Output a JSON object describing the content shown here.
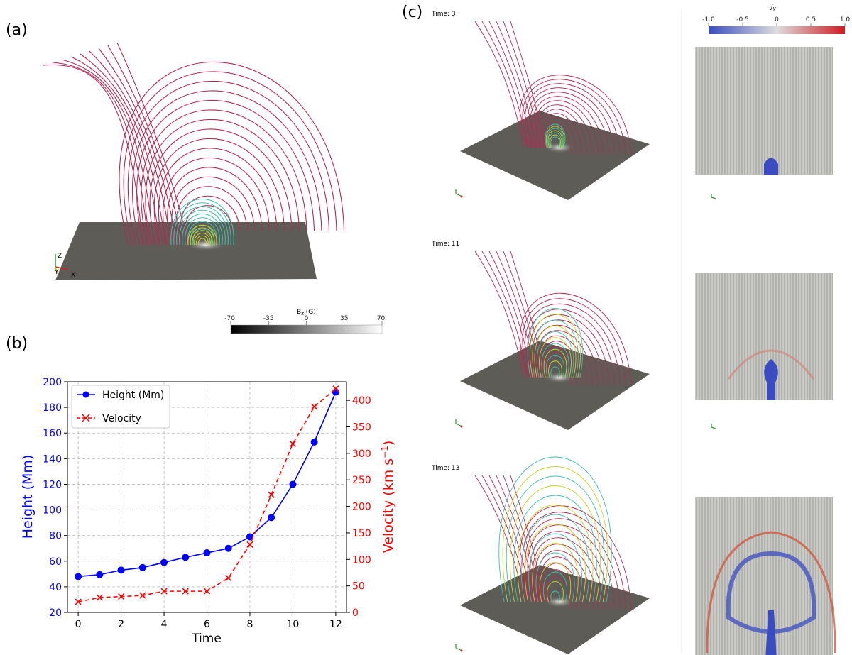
{
  "panels": {
    "a": "(a)",
    "b": "(b)",
    "c": "(c)"
  },
  "panel_a": {
    "axes": {
      "z": "Z",
      "y": "Y",
      "x": "X"
    },
    "colorbar": {
      "title": "B",
      "title_sub": "z",
      "title_unit": " (G)",
      "ticks": [
        "-70.",
        "-35",
        "0",
        "35",
        "70."
      ],
      "range": [
        -70,
        70
      ],
      "colors": [
        "#000000",
        "#ffffff"
      ]
    }
  },
  "panel_c": {
    "times": [
      "Time: 3",
      "Time: 11",
      "Time: 13"
    ],
    "colorbar": {
      "title": "J",
      "title_sub": "y",
      "ticks": [
        "-1.0",
        "-0.5",
        "0",
        "0.5",
        "1.0"
      ],
      "range": [
        -1.0,
        1.0
      ],
      "colors": [
        "#3a4cc0",
        "#dddddd",
        "#cf1a22"
      ]
    }
  },
  "chart_data": {
    "type": "line",
    "xlabel": "Time",
    "ylabel": "Height (Mm)",
    "ylabel_right_main": "Velocity (km s",
    "ylabel_right_sup": "−1",
    "ylabel_right_end": ")",
    "xlim": [
      -0.5,
      12.5
    ],
    "ylim": [
      20,
      200
    ],
    "y2lim": [
      0,
      435
    ],
    "xticks": [
      "0",
      "2",
      "4",
      "6",
      "8",
      "10",
      "12"
    ],
    "yticks": [
      "20",
      "40",
      "60",
      "80",
      "100",
      "120",
      "140",
      "160",
      "180",
      "200"
    ],
    "y2ticks": [
      "0",
      "50",
      "100",
      "150",
      "200",
      "250",
      "300",
      "350",
      "400"
    ],
    "grid": true,
    "legend_position": "upper-left",
    "x": [
      0,
      1,
      2,
      3,
      4,
      5,
      6,
      7,
      8,
      9,
      10,
      11,
      12
    ],
    "series": [
      {
        "name": "Height (Mm)",
        "axis": "left",
        "color": "#0000ff",
        "marker": "circle",
        "style": "solid",
        "values": [
          48,
          49.5,
          53,
          55,
          59,
          63,
          66.5,
          70,
          79,
          94,
          120,
          153,
          192
        ]
      },
      {
        "name": "Velocity",
        "axis": "right",
        "color": "#ff0000",
        "marker": "x",
        "style": "dashed",
        "values": [
          20,
          28,
          30,
          32,
          40,
          40,
          40,
          65,
          128,
          222,
          318,
          388,
          422
        ]
      }
    ]
  }
}
